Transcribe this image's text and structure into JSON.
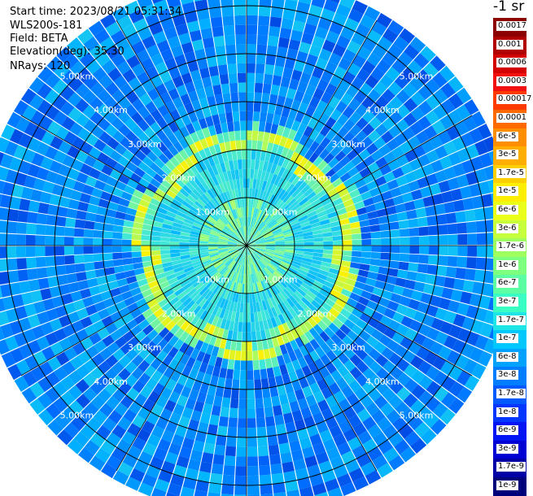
{
  "info": {
    "start_time": "Start time: 2023/08/21 05:31:34",
    "station": "WLS200s-181",
    "field": "Field: BETA",
    "elevation": "Elevation(deg): 35.30",
    "nrays": "NRays: 120"
  },
  "chart_data": {
    "type": "heatmap",
    "projection": "polar",
    "n_rays": 120,
    "range_rings_km": [
      1,
      2,
      3,
      4,
      5
    ],
    "ring_labels": [
      "1.00km",
      "2.00km",
      "3.00km",
      "4.00km",
      "5.00km"
    ],
    "spoke_angles_deg": [
      0,
      30,
      60,
      90,
      120,
      150,
      180,
      210,
      240,
      270,
      300,
      330
    ],
    "feature": "thin bright ring near 2.2 km range",
    "colorbar": {
      "title": "-1 sr",
      "labels": [
        "0.0017",
        "0.001",
        "0.0006",
        "0.0003",
        "0.00017",
        "0.0001",
        "6e-5",
        "3e-5",
        "1.7e-5",
        "1e-5",
        "6e-6",
        "3e-6",
        "1.7e-6",
        "1e-6",
        "6e-7",
        "3e-7",
        "1.7e-7",
        "1e-7",
        "6e-8",
        "3e-8",
        "1.7e-8",
        "1e-8",
        "6e-9",
        "3e-9",
        "1.7e-9",
        "1e-9"
      ],
      "colors": [
        "#8b0000",
        "#b00000",
        "#d40000",
        "#f21010",
        "#ff3a00",
        "#ff6a00",
        "#ff8e00",
        "#ffae00",
        "#ffd000",
        "#ffee00",
        "#eaff1a",
        "#c6ff3c",
        "#9fff5f",
        "#7dff80",
        "#5cffa2",
        "#3affc4",
        "#1fe6e6",
        "#00c8ff",
        "#00a2ff",
        "#007eff",
        "#005aff",
        "#0036ff",
        "#0014f4",
        "#0000d4",
        "#0000a6",
        "#00007a"
      ]
    }
  }
}
